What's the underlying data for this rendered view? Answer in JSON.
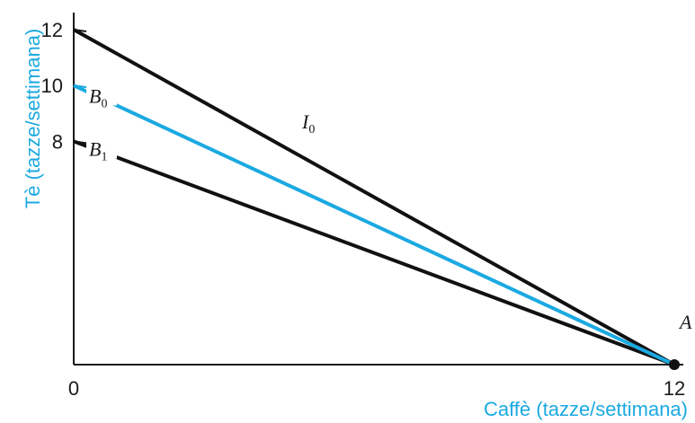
{
  "chart_data": {
    "type": "line",
    "xlabel": "Caffè (tazze/settimana)",
    "ylabel": "Tè (tazze/settimana)",
    "xlim": [
      0,
      12
    ],
    "ylim": [
      0,
      12
    ],
    "x_ticks": [
      "0",
      "12"
    ],
    "y_ticks": [
      "12",
      "10",
      "8"
    ],
    "grid": false,
    "legend": "none",
    "colors": {
      "axis": "#1a1a1a",
      "I0": "#111111",
      "B0": "#1ba9e1",
      "B1": "#111111",
      "axis_titles": "#1ba9e1"
    },
    "series": [
      {
        "name": "I0",
        "label_main": "I",
        "label_sub": "0",
        "x": [
          0,
          12
        ],
        "y": [
          12,
          0
        ]
      },
      {
        "name": "B0",
        "label_main": "B",
        "label_sub": "0",
        "x": [
          0,
          12
        ],
        "y": [
          10,
          0
        ]
      },
      {
        "name": "B1",
        "label_main": "B",
        "label_sub": "1",
        "x": [
          0,
          12
        ],
        "y": [
          8,
          0
        ]
      }
    ],
    "points": [
      {
        "name": "A",
        "label": "A",
        "x": 12,
        "y": 0
      }
    ]
  }
}
